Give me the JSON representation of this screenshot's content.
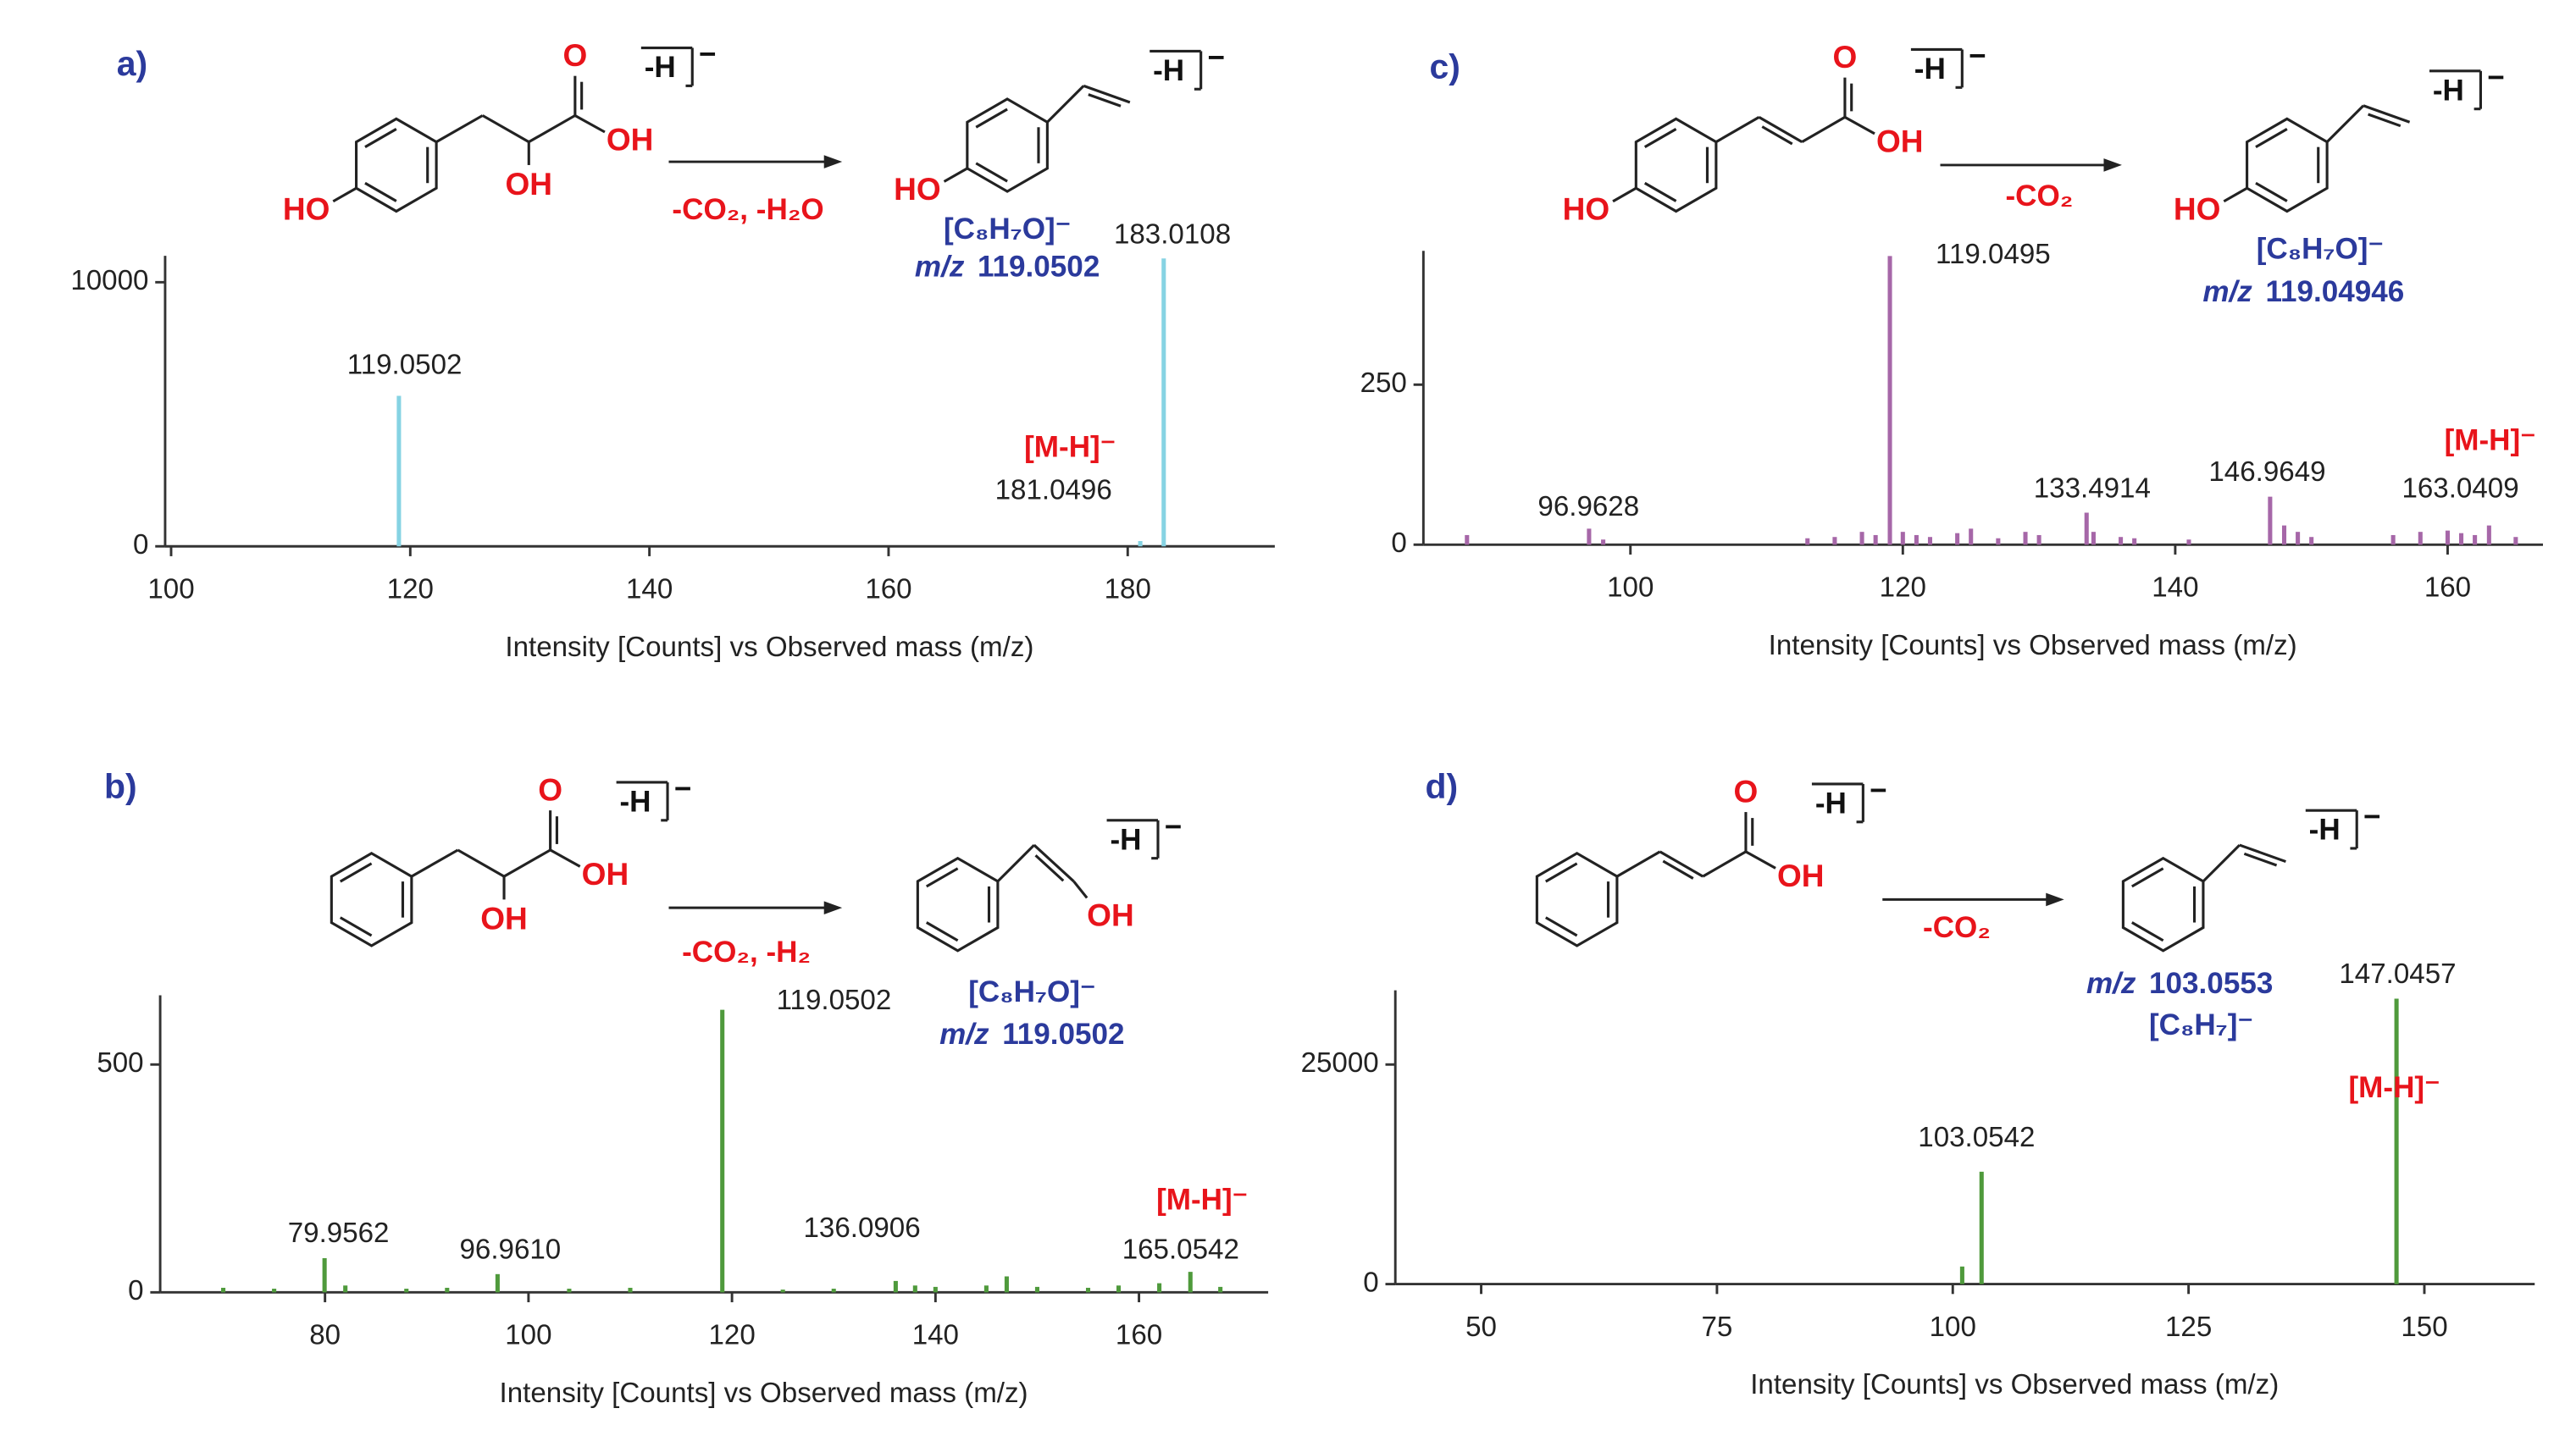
{
  "chart_data": [
    {
      "type": "bar",
      "panel": "a)",
      "xlabel": "Intensity [Counts] vs Observed mass (m/z)",
      "xlim": [
        99.5,
        192.3
      ],
      "xticks": [
        100,
        120,
        140,
        160,
        180
      ],
      "ylim": [
        0,
        11000
      ],
      "yticks": [
        0,
        10000
      ],
      "color": "#86d3e3",
      "x": [
        119.0502,
        181.0496,
        183.0108
      ],
      "values": [
        5700,
        200,
        10900
      ],
      "peak_labels": [
        "119.0502",
        "181.0496",
        "183.0108"
      ],
      "mh_label": "[M-H]⁻",
      "reaction": {
        "reactant_labels": [
          "HO",
          "OH",
          "O",
          "OH"
        ],
        "group": "-H",
        "charge": "−",
        "conditions": "-CO₂, -H₂O",
        "product_labels": [
          "HO"
        ],
        "formula": "[C₈H₇O]⁻",
        "mz_prefix": "m/z",
        "mz": "119.0502"
      }
    },
    {
      "type": "bar",
      "panel": "b)",
      "xlabel": "Intensity [Counts] vs Observed mass (m/z)",
      "xlim": [
        63.8,
        172.7
      ],
      "xticks": [
        80,
        100,
        120,
        140,
        160
      ],
      "ylim": [
        0,
        652
      ],
      "yticks": [
        0,
        500
      ],
      "color": "#4f9a3c",
      "x": [
        70,
        75,
        79.9562,
        82,
        88,
        92,
        96.961,
        104,
        110,
        119.0502,
        125,
        130,
        136.0906,
        138,
        140,
        145,
        147,
        150,
        155,
        158,
        162,
        165.0542,
        168
      ],
      "values": [
        10,
        8,
        75,
        15,
        8,
        10,
        40,
        8,
        10,
        620,
        6,
        8,
        25,
        15,
        12,
        15,
        35,
        12,
        10,
        15,
        20,
        45,
        12
      ],
      "peak_labels": [
        "79.9562",
        "96.9610",
        "119.0502",
        "136.0906",
        "165.0542"
      ],
      "mh_label": "[M-H]⁻",
      "reaction": {
        "reactant_labels": [
          "OH",
          "O",
          "OH"
        ],
        "group": "-H",
        "charge": "−",
        "conditions": "-CO₂, -H₂",
        "product_labels": [
          "OH"
        ],
        "formula": "[C₈H₇O]⁻",
        "mz_prefix": "m/z",
        "mz": "119.0502"
      }
    },
    {
      "type": "bar",
      "panel": "c)",
      "xlabel": "Intensity [Counts] vs Observed mass (m/z)",
      "xlim": [
        84.8,
        167.0
      ],
      "xticks": [
        100,
        120,
        140,
        160
      ],
      "ylim": [
        0,
        459
      ],
      "yticks": [
        0,
        250
      ],
      "color": "#a667a8",
      "x": [
        88,
        96.9628,
        98,
        113,
        115,
        117,
        118,
        119.0495,
        120,
        121,
        122,
        124,
        125,
        127,
        129,
        130,
        133.4914,
        134,
        136,
        137,
        141,
        146.9649,
        148,
        149,
        150,
        156,
        158,
        160,
        161,
        162,
        163.0409,
        165
      ],
      "values": [
        15,
        25,
        8,
        10,
        12,
        20,
        15,
        451,
        20,
        15,
        12,
        18,
        25,
        10,
        20,
        15,
        50,
        20,
        12,
        10,
        8,
        75,
        30,
        20,
        12,
        15,
        20,
        22,
        18,
        15,
        30,
        12
      ],
      "peak_labels": [
        "96.9628",
        "119.0495",
        "133.4914",
        "146.9649",
        "163.0409"
      ],
      "mh_label": "[M-H]⁻",
      "reaction": {
        "reactant_labels": [
          "HO",
          "O",
          "OH"
        ],
        "group": "-H",
        "charge": "−",
        "conditions": "-CO₂",
        "product_labels": [
          "HO"
        ],
        "formula": "[C₈H₇O]⁻",
        "mz_prefix": "m/z",
        "mz": "119.04946"
      }
    },
    {
      "type": "bar",
      "panel": "d)",
      "xlabel": "Intensity [Counts] vs Observed mass (m/z)",
      "xlim": [
        40.9,
        161.7
      ],
      "xticks": [
        50,
        75,
        100,
        125,
        150
      ],
      "ylim": [
        0,
        33450
      ],
      "yticks": [
        0,
        25000
      ],
      "color": "#4f9a3c",
      "x": [
        101,
        103.0542,
        147.0457
      ],
      "values": [
        2000,
        12800,
        32500
      ],
      "peak_labels": [
        "103.0542",
        "147.0457"
      ],
      "mh_label": "[M-H]⁻",
      "reaction": {
        "reactant_labels": [
          "O",
          "OH"
        ],
        "group": "-H",
        "charge": "−",
        "conditions": "-CO₂",
        "product_labels": [],
        "formula": "[C₈H₇]⁻",
        "mz_prefix": "m/z",
        "mz": "103.0553"
      }
    }
  ]
}
